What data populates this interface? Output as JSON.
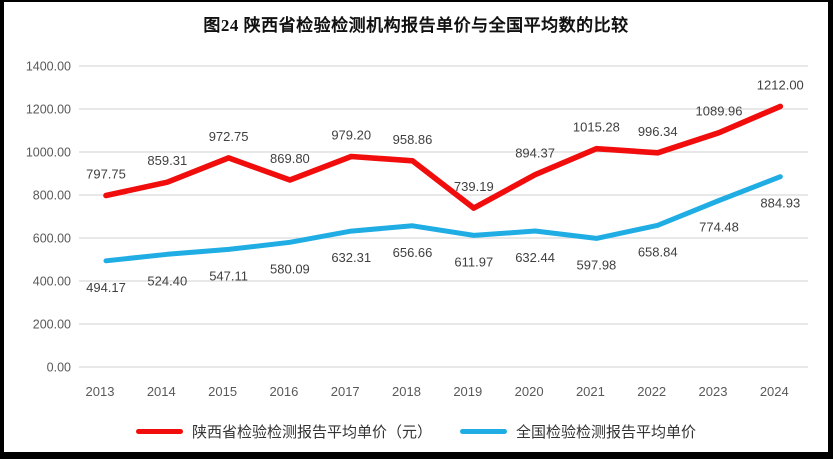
{
  "chart_data": {
    "type": "line",
    "title": "图24 陕西省检验检测机构报告单价与全国平均数的比较",
    "categories": [
      "2013",
      "2014",
      "2015",
      "2016",
      "2017",
      "2018",
      "2019",
      "2020",
      "2021",
      "2022",
      "2023",
      "2024"
    ],
    "series": [
      {
        "name": "陕西省检验检测报告平均单价（元）",
        "color": "#f20d0d",
        "values": [
          797.75,
          859.31,
          972.75,
          869.8,
          979.2,
          958.86,
          739.19,
          894.37,
          1015.28,
          996.34,
          1089.96,
          1212.0
        ]
      },
      {
        "name": "全国检验检测报告平均单价",
        "color": "#1fade4",
        "values": [
          494.17,
          524.4,
          547.11,
          580.09,
          632.31,
          656.66,
          611.97,
          632.44,
          597.98,
          658.84,
          774.48,
          884.93
        ]
      }
    ],
    "xlabel": "",
    "ylabel": "",
    "ylim": [
      0,
      1400
    ],
    "y_ticks": [
      {
        "value": 0,
        "label": "0.00"
      },
      {
        "value": 200,
        "label": "200.00"
      },
      {
        "value": 400,
        "label": "400.00"
      },
      {
        "value": 600,
        "label": "600.00"
      },
      {
        "value": 800,
        "label": "800.00"
      },
      {
        "value": 1000,
        "label": "1000.00"
      },
      {
        "value": 1200,
        "label": "1200.00"
      },
      {
        "value": 1400,
        "label": "1400.00"
      }
    ],
    "grid": true,
    "value_labels": true,
    "legend_position": "bottom",
    "colors": {
      "gridline": "#d9d9d9",
      "tick_text": "#595959",
      "value_text": "#404040"
    }
  }
}
